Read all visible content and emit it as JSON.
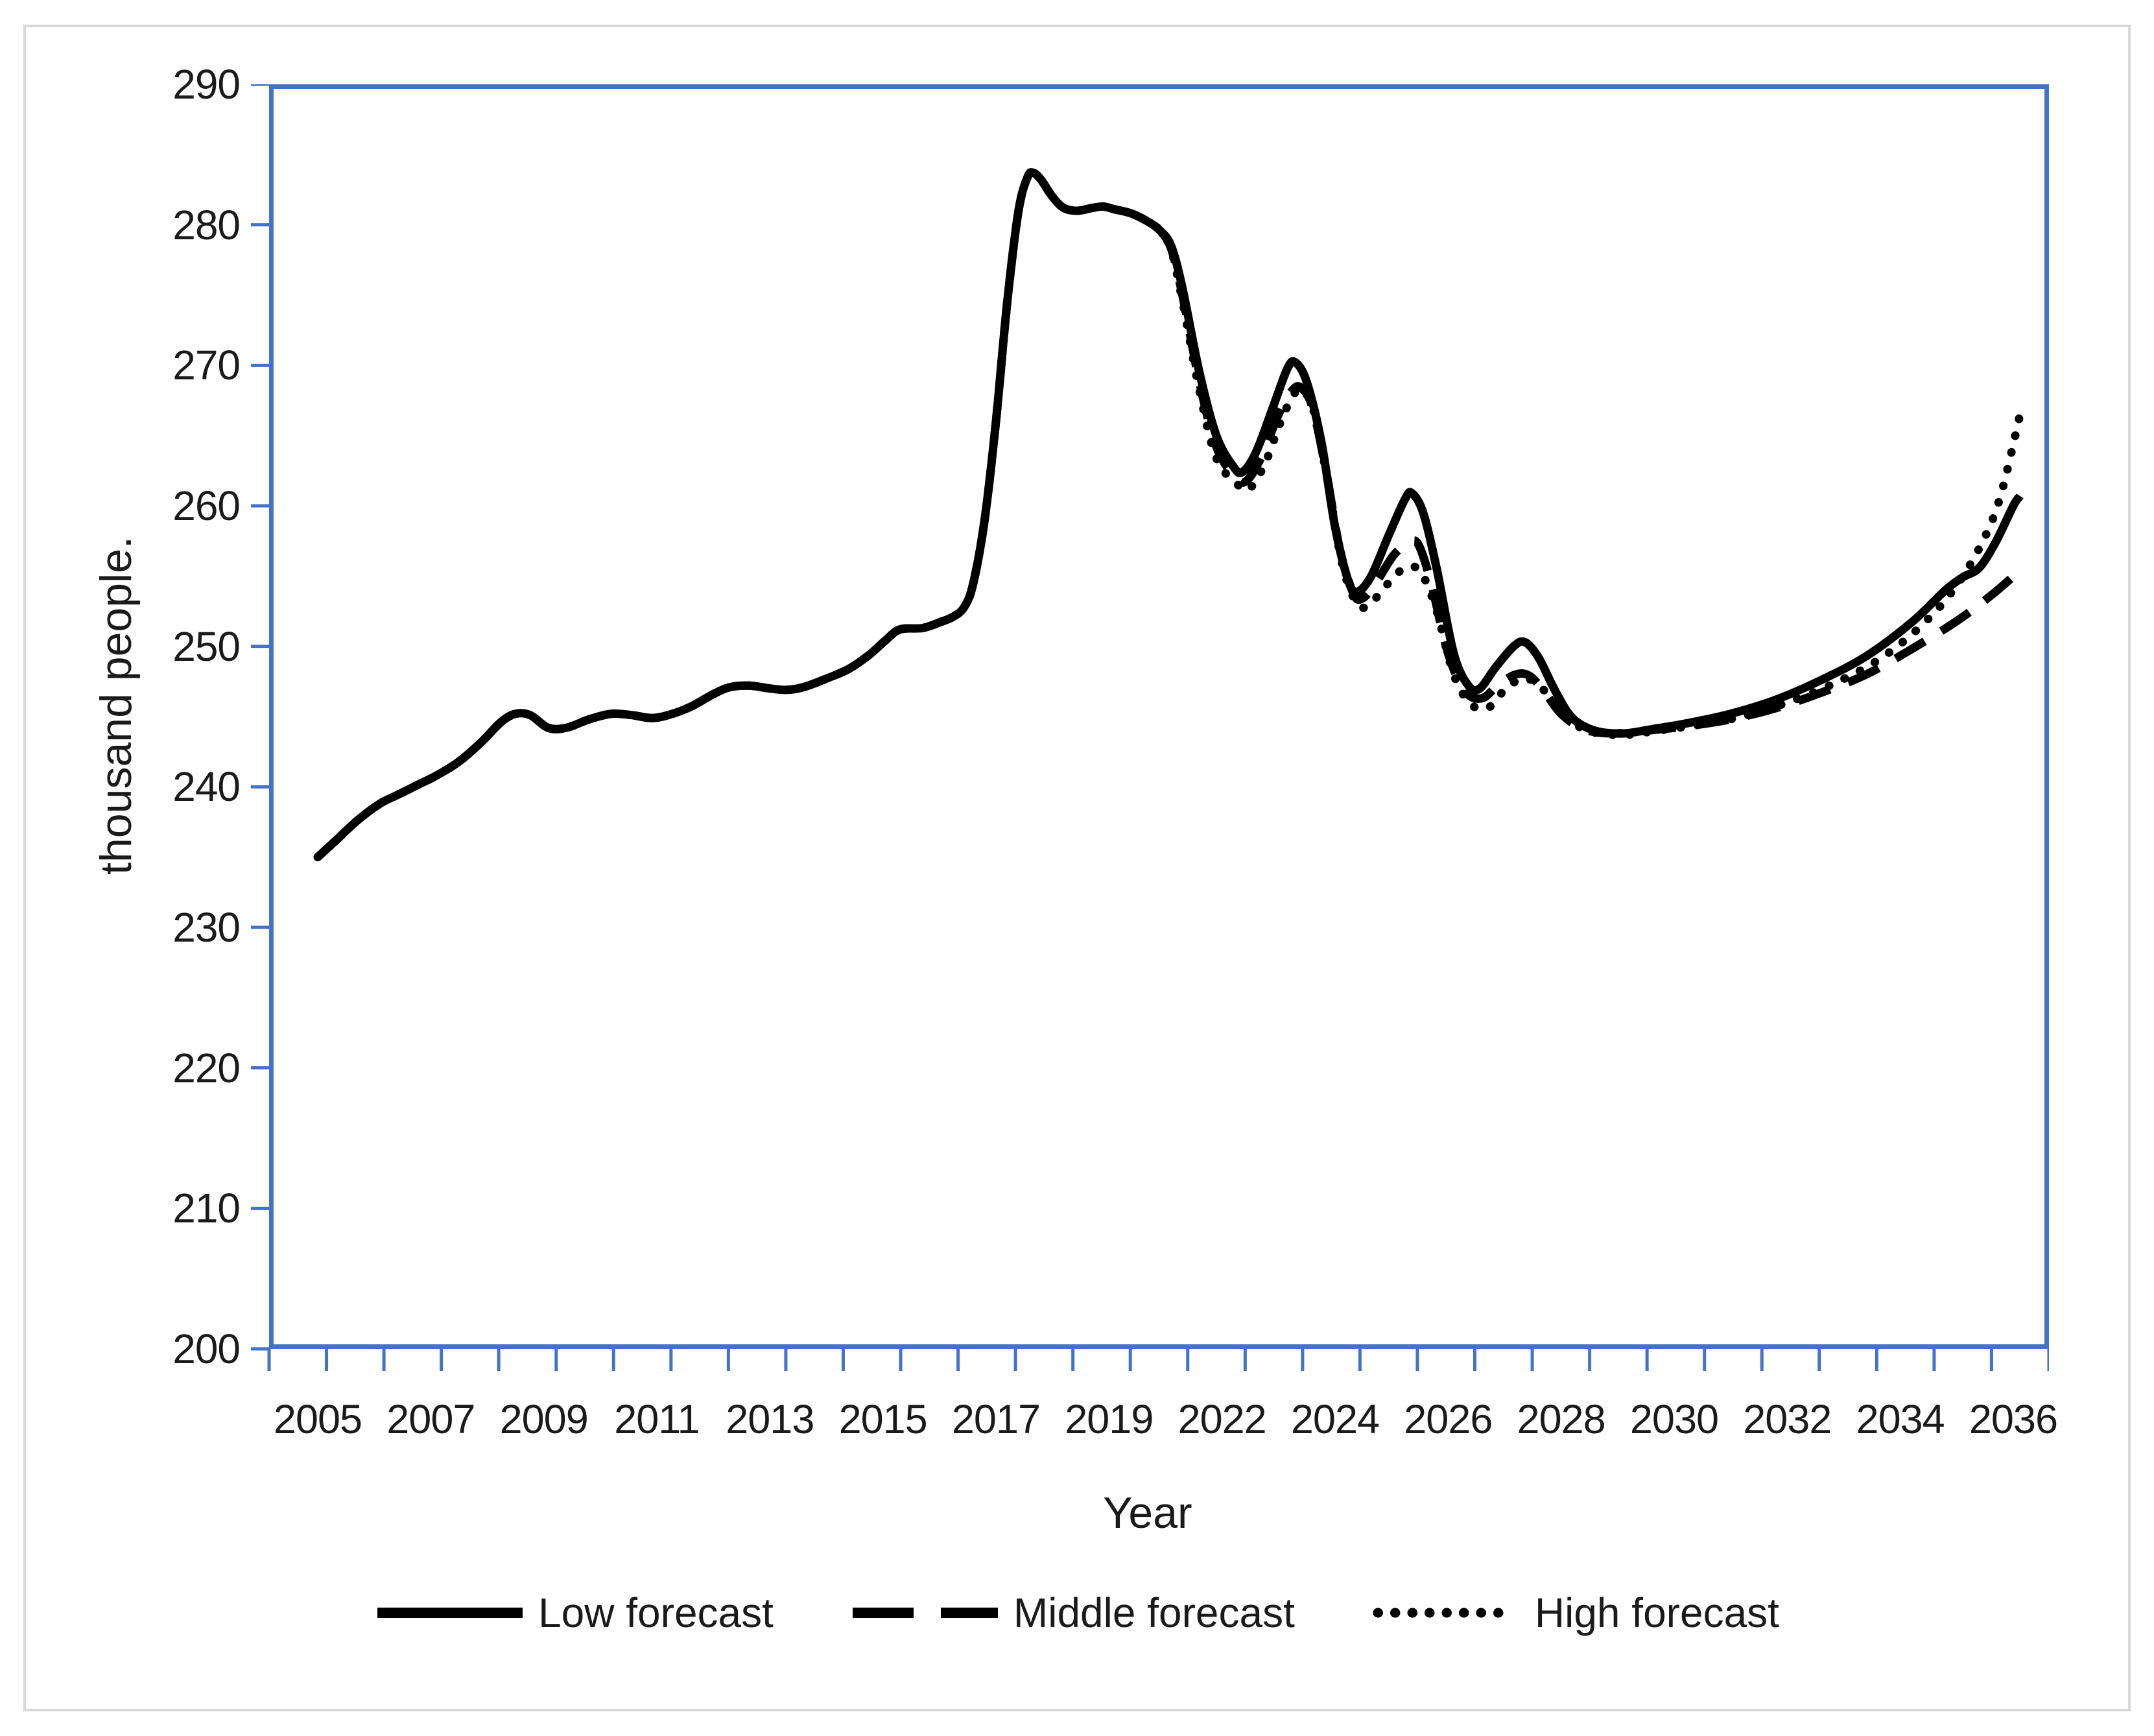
{
  "chart_data": {
    "type": "line",
    "title": "",
    "xlabel": "Year",
    "ylabel": "thousand people.",
    "ylim": [
      200,
      290
    ],
    "y_ticks": [
      290,
      280,
      270,
      260,
      250,
      240,
      230,
      220,
      210,
      200
    ],
    "x_tick_labels": [
      "2005",
      "2007",
      "2009",
      "2011",
      "2013",
      "2015",
      "2017",
      "2019",
      "2022",
      "2024",
      "2026",
      "2028",
      "2030",
      "2032",
      "2034",
      "2036"
    ],
    "x_unit_note": "series x is measured in x-label intervals (0 = 2005 label, 15 = 2036 label)",
    "grid": "off",
    "legend_position": "bottom",
    "axis_color": "#4472C4",
    "series_color": "#000000",
    "text_color": "#1a1a1a",
    "common_points": [
      [
        0.0,
        235.0
      ],
      [
        0.15,
        236.1
      ],
      [
        0.35,
        237.6
      ],
      [
        0.55,
        238.8
      ],
      [
        0.7,
        239.4
      ],
      [
        0.9,
        240.2
      ],
      [
        1.05,
        240.8
      ],
      [
        1.25,
        241.8
      ],
      [
        1.45,
        243.2
      ],
      [
        1.62,
        244.6
      ],
      [
        1.75,
        245.2
      ],
      [
        1.88,
        245.1
      ],
      [
        2.04,
        244.2
      ],
      [
        2.2,
        244.2
      ],
      [
        2.4,
        244.8
      ],
      [
        2.6,
        245.2
      ],
      [
        2.78,
        245.1
      ],
      [
        2.95,
        244.9
      ],
      [
        3.1,
        245.1
      ],
      [
        3.3,
        245.7
      ],
      [
        3.5,
        246.6
      ],
      [
        3.65,
        247.1
      ],
      [
        3.82,
        247.2
      ],
      [
        4.0,
        247.0
      ],
      [
        4.15,
        246.9
      ],
      [
        4.3,
        247.1
      ],
      [
        4.5,
        247.7
      ],
      [
        4.7,
        248.4
      ],
      [
        4.88,
        249.4
      ],
      [
        5.02,
        250.4
      ],
      [
        5.15,
        251.2
      ],
      [
        5.35,
        251.3
      ],
      [
        5.5,
        251.7
      ],
      [
        5.62,
        252.1
      ],
      [
        5.72,
        252.8
      ],
      [
        5.8,
        254.5
      ],
      [
        5.9,
        259.0
      ],
      [
        6.0,
        266.0
      ],
      [
        6.1,
        274.5
      ],
      [
        6.2,
        281.0
      ],
      [
        6.28,
        283.4
      ],
      [
        6.33,
        283.7
      ],
      [
        6.4,
        283.2
      ],
      [
        6.5,
        282.0
      ],
      [
        6.6,
        281.2
      ],
      [
        6.72,
        281.0
      ],
      [
        6.85,
        281.2
      ],
      [
        6.95,
        281.3
      ],
      [
        7.05,
        281.1
      ],
      [
        7.2,
        280.8
      ],
      [
        7.35,
        280.2
      ],
      [
        7.45,
        279.6
      ]
    ],
    "series": [
      {
        "name": "Low forecast",
        "style": "solid",
        "points": [
          [
            7.55,
            278.5
          ],
          [
            7.65,
            275.5
          ],
          [
            7.8,
            269.5
          ],
          [
            7.95,
            265.0
          ],
          [
            8.1,
            262.8
          ],
          [
            8.18,
            262.4
          ],
          [
            8.3,
            263.8
          ],
          [
            8.45,
            267.0
          ],
          [
            8.58,
            269.8
          ],
          [
            8.65,
            270.2
          ],
          [
            8.75,
            268.8
          ],
          [
            8.88,
            264.5
          ],
          [
            9.0,
            258.5
          ],
          [
            9.12,
            254.6
          ],
          [
            9.2,
            253.9
          ],
          [
            9.32,
            255.0
          ],
          [
            9.48,
            258.0
          ],
          [
            9.62,
            260.5
          ],
          [
            9.68,
            260.9
          ],
          [
            9.78,
            259.5
          ],
          [
            9.9,
            255.5
          ],
          [
            10.05,
            249.5
          ],
          [
            10.18,
            247.2
          ],
          [
            10.28,
            247.0
          ],
          [
            10.42,
            248.5
          ],
          [
            10.58,
            250.0
          ],
          [
            10.68,
            250.3
          ],
          [
            10.8,
            249.2
          ],
          [
            10.95,
            246.8
          ],
          [
            11.1,
            244.9
          ],
          [
            11.3,
            244.0
          ],
          [
            11.55,
            243.8
          ],
          [
            11.8,
            244.1
          ],
          [
            12.1,
            244.5
          ],
          [
            12.5,
            245.2
          ],
          [
            12.9,
            246.2
          ],
          [
            13.3,
            247.6
          ],
          [
            13.7,
            249.3
          ],
          [
            14.1,
            251.7
          ],
          [
            14.4,
            254.0
          ],
          [
            14.55,
            254.9
          ],
          [
            14.7,
            255.6
          ],
          [
            14.85,
            257.5
          ],
          [
            15.0,
            260.0
          ],
          [
            15.06,
            260.7
          ]
        ]
      },
      {
        "name": "Middle forecast",
        "style": "dashed",
        "points": [
          [
            7.55,
            278.3
          ],
          [
            7.65,
            275.0
          ],
          [
            7.8,
            268.8
          ],
          [
            7.95,
            264.2
          ],
          [
            8.12,
            262.0
          ],
          [
            8.22,
            261.8
          ],
          [
            8.35,
            263.5
          ],
          [
            8.5,
            266.5
          ],
          [
            8.62,
            268.2
          ],
          [
            8.7,
            268.4
          ],
          [
            8.8,
            267.0
          ],
          [
            8.92,
            262.5
          ],
          [
            9.04,
            257.0
          ],
          [
            9.16,
            253.8
          ],
          [
            9.24,
            253.4
          ],
          [
            9.36,
            254.5
          ],
          [
            9.52,
            256.5
          ],
          [
            9.66,
            257.4
          ],
          [
            9.74,
            257.2
          ],
          [
            9.85,
            254.5
          ],
          [
            10.0,
            249.5
          ],
          [
            10.15,
            246.8
          ],
          [
            10.3,
            246.3
          ],
          [
            10.45,
            247.3
          ],
          [
            10.6,
            248.0
          ],
          [
            10.72,
            247.9
          ],
          [
            10.85,
            246.8
          ],
          [
            11.0,
            245.2
          ],
          [
            11.2,
            244.1
          ],
          [
            11.45,
            243.8
          ],
          [
            11.75,
            244.0
          ],
          [
            12.1,
            244.3
          ],
          [
            12.5,
            244.8
          ],
          [
            12.9,
            245.6
          ],
          [
            13.3,
            246.7
          ],
          [
            13.7,
            248.0
          ],
          [
            14.1,
            249.8
          ],
          [
            14.5,
            251.8
          ],
          [
            14.8,
            253.6
          ],
          [
            15.06,
            255.4
          ]
        ]
      },
      {
        "name": "High forecast",
        "style": "dotted",
        "points": [
          [
            7.55,
            278.2
          ],
          [
            7.65,
            274.6
          ],
          [
            7.8,
            268.2
          ],
          [
            7.95,
            263.4
          ],
          [
            8.14,
            261.5
          ],
          [
            8.24,
            261.2
          ],
          [
            8.38,
            263.0
          ],
          [
            8.52,
            266.0
          ],
          [
            8.64,
            268.0
          ],
          [
            8.72,
            268.2
          ],
          [
            8.82,
            266.5
          ],
          [
            8.94,
            261.5
          ],
          [
            9.06,
            256.0
          ],
          [
            9.18,
            253.2
          ],
          [
            9.28,
            252.8
          ],
          [
            9.4,
            253.8
          ],
          [
            9.55,
            255.2
          ],
          [
            9.68,
            255.7
          ],
          [
            9.78,
            255.0
          ],
          [
            9.9,
            252.5
          ],
          [
            10.05,
            248.0
          ],
          [
            10.2,
            245.9
          ],
          [
            10.35,
            245.6
          ],
          [
            10.5,
            246.9
          ],
          [
            10.65,
            247.7
          ],
          [
            10.78,
            247.4
          ],
          [
            10.92,
            246.2
          ],
          [
            11.08,
            244.7
          ],
          [
            11.28,
            243.9
          ],
          [
            11.55,
            243.7
          ],
          [
            11.85,
            244.0
          ],
          [
            12.2,
            244.4
          ],
          [
            12.6,
            245.0
          ],
          [
            13.0,
            246.0
          ],
          [
            13.4,
            247.3
          ],
          [
            13.8,
            249.0
          ],
          [
            14.15,
            251.2
          ],
          [
            14.45,
            253.8
          ],
          [
            14.7,
            257.0
          ],
          [
            14.88,
            260.5
          ],
          [
            15.06,
            266.5
          ]
        ]
      }
    ]
  },
  "legend": {
    "items": [
      {
        "label": "Low forecast",
        "style": "solid"
      },
      {
        "label": "Middle forecast",
        "style": "dashed"
      },
      {
        "label": "High forecast",
        "style": "dotted"
      }
    ]
  }
}
